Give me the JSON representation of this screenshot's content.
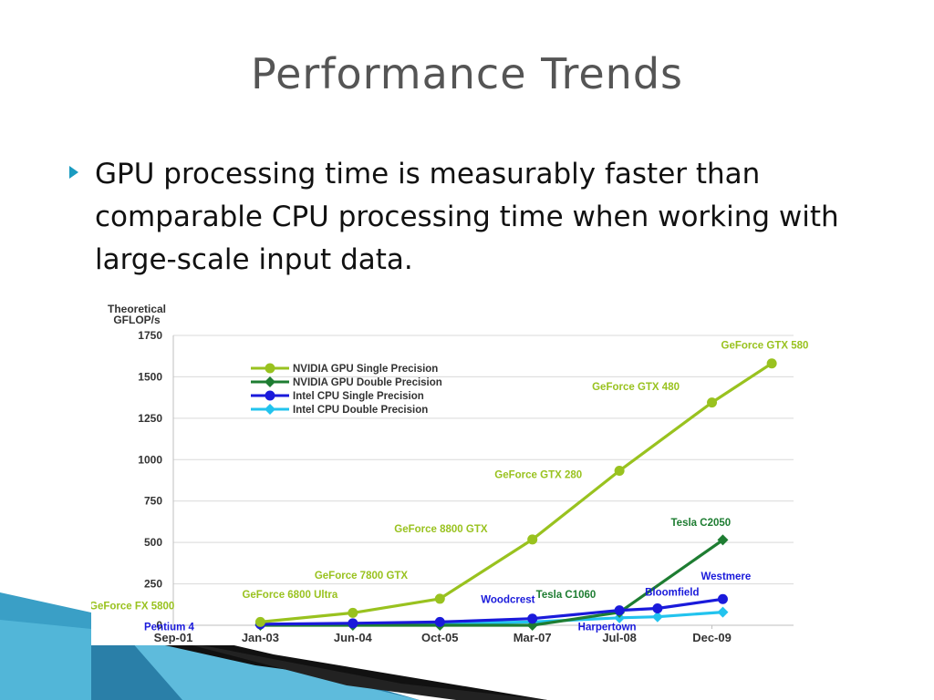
{
  "slide": {
    "title": "Performance Trends",
    "bullet": "GPU processing time is measurably faster than comparable CPU processing time when working with large-scale input data."
  },
  "colors": {
    "title": "#555555",
    "accent": "#1a9bc0",
    "gpu_single": "#99c21f",
    "gpu_double": "#1e7d32",
    "cpu_single": "#1a1adb",
    "cpu_double": "#22c3ee"
  },
  "chart_data": {
    "type": "line",
    "ylabel_lines": [
      "Theoretical",
      "GFLOP/s"
    ],
    "xlabel": "",
    "ylim": [
      0,
      1750
    ],
    "yticks": [
      0,
      250,
      500,
      750,
      1000,
      1250,
      1500,
      1750
    ],
    "xlim": [
      "Sep-01",
      "Mar-11"
    ],
    "xticks": [
      "Sep-01",
      "Jan-03",
      "Jun-04",
      "Oct-05",
      "Mar-07",
      "Jul-08",
      "Dec-09"
    ],
    "grid": "horizontal",
    "legend_position": "top-left",
    "series": [
      {
        "name": "NVIDIA GPU Single Precision",
        "color": "#99c21f",
        "marker": "circle",
        "points": [
          {
            "x": "Jan-03",
            "y": 20
          },
          {
            "x": "Jun-04",
            "y": 75
          },
          {
            "x": "Oct-05",
            "y": 160
          },
          {
            "x": "Mar-07",
            "y": 518
          },
          {
            "x": "Jul-08",
            "y": 933
          },
          {
            "x": "Dec-09",
            "y": 1345
          },
          {
            "x": "Nov-10",
            "y": 1581
          }
        ]
      },
      {
        "name": "NVIDIA GPU Double Precision",
        "color": "#1e7d32",
        "marker": "diamond",
        "points": [
          {
            "x": "Jan-03",
            "y": 0
          },
          {
            "x": "Jun-04",
            "y": 0
          },
          {
            "x": "Oct-05",
            "y": 0
          },
          {
            "x": "Mar-07",
            "y": 0
          },
          {
            "x": "Jul-08",
            "y": 78
          },
          {
            "x": "Feb-10",
            "y": 515
          }
        ]
      },
      {
        "name": "Intel CPU Single Precision",
        "color": "#1a1adb",
        "marker": "circle",
        "points": [
          {
            "x": "Jan-03",
            "y": 6
          },
          {
            "x": "Jun-04",
            "y": 12
          },
          {
            "x": "Oct-05",
            "y": 20
          },
          {
            "x": "Mar-07",
            "y": 40
          },
          {
            "x": "Jul-08",
            "y": 90
          },
          {
            "x": "Feb-09",
            "y": 102
          },
          {
            "x": "Feb-10",
            "y": 158
          }
        ]
      },
      {
        "name": "Intel CPU Double Precision",
        "color": "#22c3ee",
        "marker": "diamond",
        "points": [
          {
            "x": "Jan-03",
            "y": 3
          },
          {
            "x": "Jun-04",
            "y": 6
          },
          {
            "x": "Oct-05",
            "y": 10
          },
          {
            "x": "Mar-07",
            "y": 20
          },
          {
            "x": "Jul-08",
            "y": 45
          },
          {
            "x": "Feb-09",
            "y": 51
          },
          {
            "x": "Feb-10",
            "y": 79
          }
        ]
      }
    ],
    "annotations": [
      {
        "text": "GeForce GTX 580",
        "color": "#99c21f"
      },
      {
        "text": "GeForce GTX 480",
        "color": "#99c21f"
      },
      {
        "text": "GeForce GTX 280",
        "color": "#99c21f"
      },
      {
        "text": "GeForce 8800 GTX",
        "color": "#99c21f"
      },
      {
        "text": "GeForce 7800 GTX",
        "color": "#99c21f"
      },
      {
        "text": "GeForce 6800 Ultra",
        "color": "#99c21f"
      },
      {
        "text": "GeForce FX 5800",
        "color": "#99c21f"
      },
      {
        "text": "Tesla C2050",
        "color": "#1e7d32"
      },
      {
        "text": "Tesla C1060",
        "color": "#1e7d32"
      },
      {
        "text": "Westmere",
        "color": "#1a1adb"
      },
      {
        "text": "Bloomfield",
        "color": "#1a1adb"
      },
      {
        "text": "Woodcrest",
        "color": "#1a1adb"
      },
      {
        "text": "Harpertown",
        "color": "#1a1adb"
      },
      {
        "text": "Pentium 4",
        "color": "#1a1adb"
      }
    ]
  }
}
